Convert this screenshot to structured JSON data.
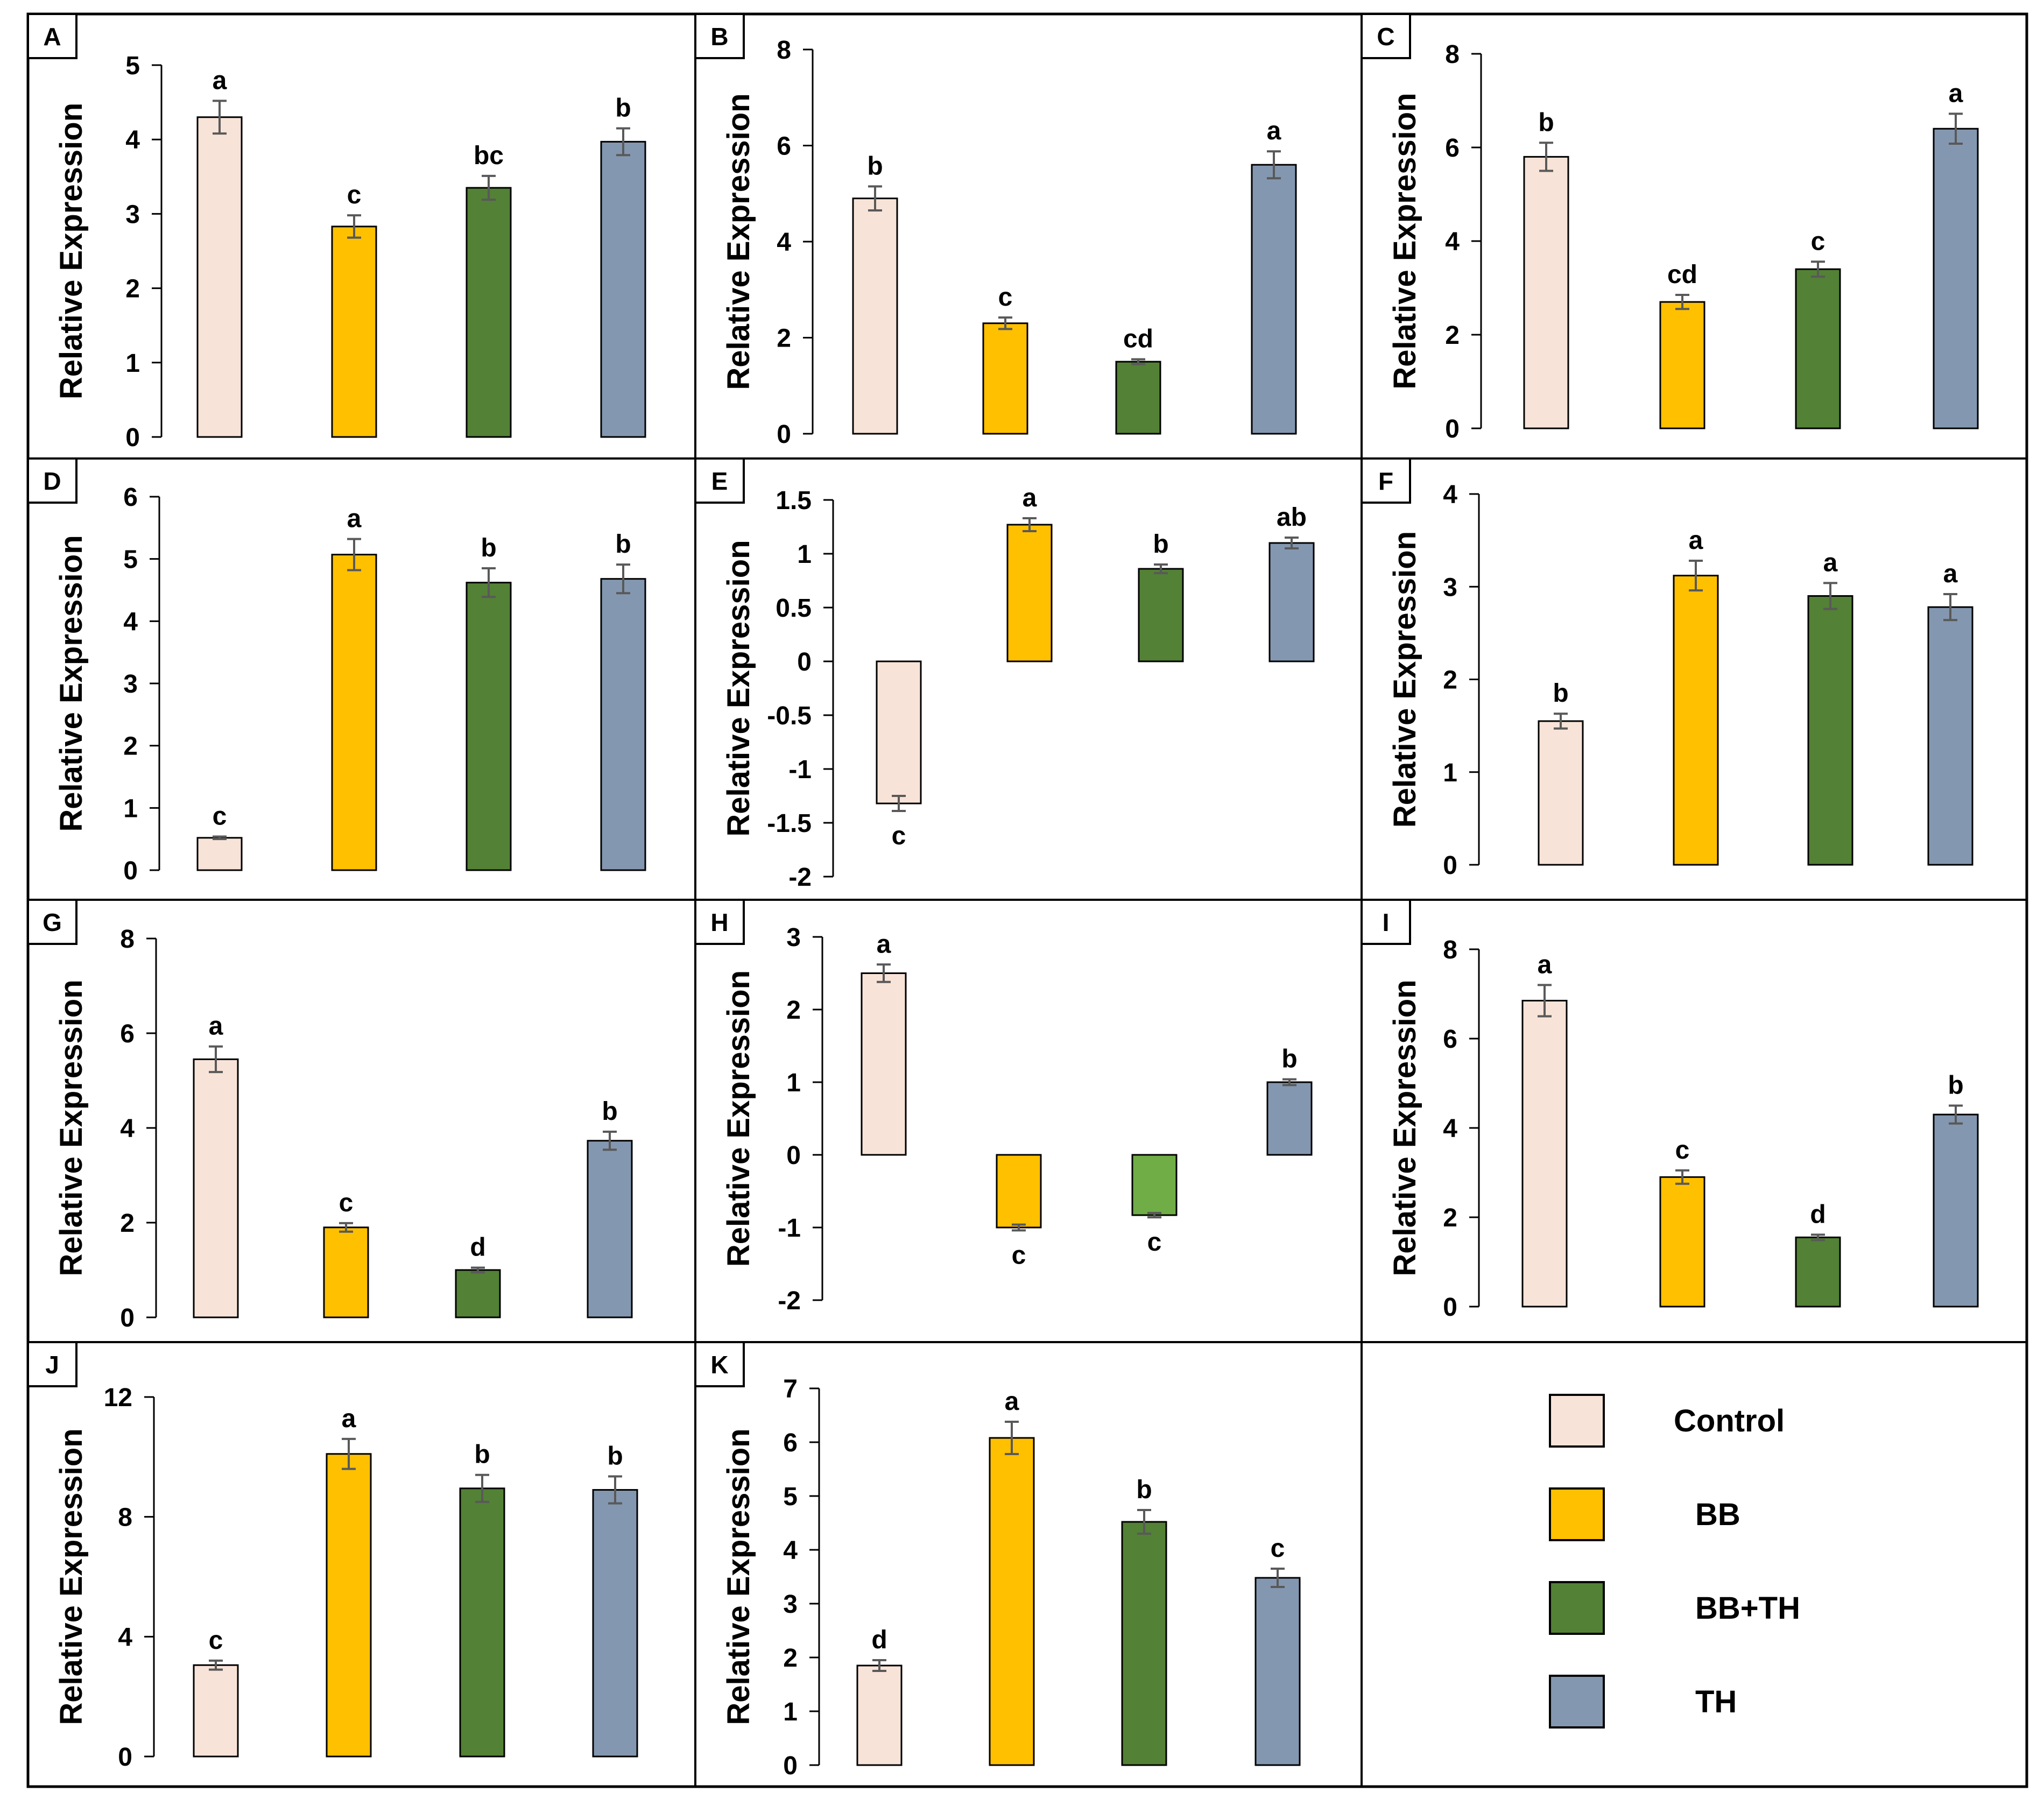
{
  "figure": {
    "ylabel": "Relative Expression"
  },
  "colors": {
    "Control": "#f8e3d8",
    "BB": "#ffc000",
    "BB+TH": "#538135",
    "BB+TH_H": "#70ad47",
    "TH": "#8497b0",
    "error": "#595959"
  },
  "legend": {
    "items": [
      {
        "label": "Control",
        "color_key": "Control"
      },
      {
        "label": "BB",
        "color_key": "BB"
      },
      {
        "label": "BB+TH",
        "color_key": "BB+TH"
      },
      {
        "label": "TH",
        "color_key": "TH"
      }
    ]
  },
  "chart_data": [
    {
      "panel": "A",
      "type": "bar",
      "categories": [
        "Control",
        "BB",
        "BB+TH",
        "TH"
      ],
      "values": [
        4.3,
        2.83,
        3.35,
        3.97
      ],
      "errors": [
        0.22,
        0.15,
        0.16,
        0.18
      ],
      "letters": [
        "a",
        "c",
        "bc",
        "b"
      ],
      "ylim": [
        0,
        5
      ],
      "yticks": [
        0,
        1,
        2,
        3,
        4,
        5
      ],
      "ylabel": "Relative Expression"
    },
    {
      "panel": "B",
      "type": "bar",
      "categories": [
        "Control",
        "BB",
        "BB+TH",
        "TH"
      ],
      "values": [
        4.9,
        2.3,
        1.5,
        5.6
      ],
      "errors": [
        0.25,
        0.12,
        0.05,
        0.28
      ],
      "letters": [
        "b",
        "c",
        "cd",
        "a"
      ],
      "ylim": [
        0,
        8
      ],
      "yticks": [
        0,
        2,
        4,
        6,
        8
      ],
      "ylabel": "Relative Expression"
    },
    {
      "panel": "C",
      "type": "bar",
      "categories": [
        "Control",
        "BB",
        "BB+TH",
        "TH"
      ],
      "values": [
        5.8,
        2.7,
        3.4,
        6.4
      ],
      "errors": [
        0.3,
        0.15,
        0.16,
        0.32
      ],
      "letters": [
        "b",
        "cd",
        "c",
        "a"
      ],
      "ylim": [
        0,
        8
      ],
      "yticks": [
        0,
        2,
        4,
        6,
        8
      ],
      "ylabel": "Relative Expression"
    },
    {
      "panel": "D",
      "type": "bar",
      "categories": [
        "Control",
        "BB",
        "BB+TH",
        "TH"
      ],
      "values": [
        0.52,
        5.07,
        4.62,
        4.68
      ],
      "errors": [
        0.02,
        0.25,
        0.23,
        0.23
      ],
      "letters": [
        "c",
        "a",
        "b",
        "b"
      ],
      "ylim": [
        0,
        6
      ],
      "yticks": [
        0,
        1,
        2,
        3,
        4,
        5,
        6
      ],
      "ylabel": "Relative Expression"
    },
    {
      "panel": "E",
      "type": "bar",
      "categories": [
        "Control",
        "BB",
        "BB+TH",
        "TH"
      ],
      "values": [
        -1.32,
        1.27,
        0.86,
        1.1
      ],
      "errors": [
        0.07,
        0.06,
        0.04,
        0.05
      ],
      "letters": [
        "c",
        "a",
        "b",
        "ab"
      ],
      "ylim": [
        -2,
        1.5
      ],
      "yticks": [
        -2,
        -1.5,
        -1,
        -0.5,
        0,
        0.5,
        1,
        1.5
      ],
      "yticklabels": [
        "-2",
        "-1.5",
        "-1",
        "-0.5",
        "0",
        "0.5",
        "1",
        "1.5"
      ],
      "ylabel": "Relative Expression"
    },
    {
      "panel": "F",
      "type": "bar",
      "categories": [
        "Control",
        "BB",
        "BB+TH",
        "TH"
      ],
      "values": [
        1.55,
        3.12,
        2.9,
        2.78
      ],
      "errors": [
        0.08,
        0.16,
        0.14,
        0.14
      ],
      "letters": [
        "b",
        "a",
        "a",
        "a"
      ],
      "ylim": [
        0,
        4
      ],
      "yticks": [
        0,
        1,
        2,
        3,
        4
      ],
      "ylabel": "Relative Expression"
    },
    {
      "panel": "G",
      "type": "bar",
      "categories": [
        "Control",
        "BB",
        "BB+TH",
        "TH"
      ],
      "values": [
        5.45,
        1.9,
        1.0,
        3.73
      ],
      "errors": [
        0.27,
        0.09,
        0.05,
        0.19
      ],
      "letters": [
        "a",
        "c",
        "d",
        "b"
      ],
      "ylim": [
        0,
        8
      ],
      "yticks": [
        0,
        2,
        4,
        6,
        8
      ],
      "ylabel": "Relative Expression"
    },
    {
      "panel": "H",
      "type": "bar",
      "categories": [
        "Control",
        "BB",
        "BB+TH",
        "TH"
      ],
      "values": [
        2.5,
        -1.0,
        -0.83,
        1.0
      ],
      "errors": [
        0.12,
        0.04,
        0.03,
        0.04
      ],
      "letters": [
        "a",
        "c",
        "c",
        "b"
      ],
      "ylim": [
        -2,
        3
      ],
      "yticks": [
        -2,
        -1,
        0,
        1,
        2,
        3
      ],
      "ylabel": "Relative Expression",
      "color_override": {
        "BB+TH": "BB+TH_H"
      }
    },
    {
      "panel": "I",
      "type": "bar",
      "categories": [
        "Control",
        "BB",
        "BB+TH",
        "TH"
      ],
      "values": [
        6.85,
        2.9,
        1.55,
        4.3
      ],
      "errors": [
        0.35,
        0.15,
        0.06,
        0.2
      ],
      "letters": [
        "a",
        "c",
        "d",
        "b"
      ],
      "ylim": [
        0,
        8
      ],
      "yticks": [
        0,
        2,
        4,
        6,
        8
      ],
      "ylabel": "Relative Expression"
    },
    {
      "panel": "J",
      "type": "bar",
      "categories": [
        "Control",
        "BB",
        "BB+TH",
        "TH"
      ],
      "values": [
        3.05,
        10.1,
        8.95,
        8.9
      ],
      "errors": [
        0.15,
        0.5,
        0.45,
        0.45
      ],
      "letters": [
        "c",
        "a",
        "b",
        "b"
      ],
      "ylim": [
        0,
        12
      ],
      "yticks": [
        0,
        4,
        8,
        12
      ],
      "ylabel": "Relative Expression"
    },
    {
      "panel": "K",
      "type": "bar",
      "categories": [
        "Control",
        "BB",
        "BB+TH",
        "TH"
      ],
      "values": [
        1.85,
        6.08,
        4.52,
        3.48
      ],
      "errors": [
        0.1,
        0.3,
        0.22,
        0.17
      ],
      "letters": [
        "d",
        "a",
        "b",
        "c"
      ],
      "ylim": [
        0,
        7
      ],
      "yticks": [
        0,
        1,
        2,
        3,
        4,
        5,
        6,
        7
      ],
      "ylabel": "Relative Expression"
    }
  ]
}
